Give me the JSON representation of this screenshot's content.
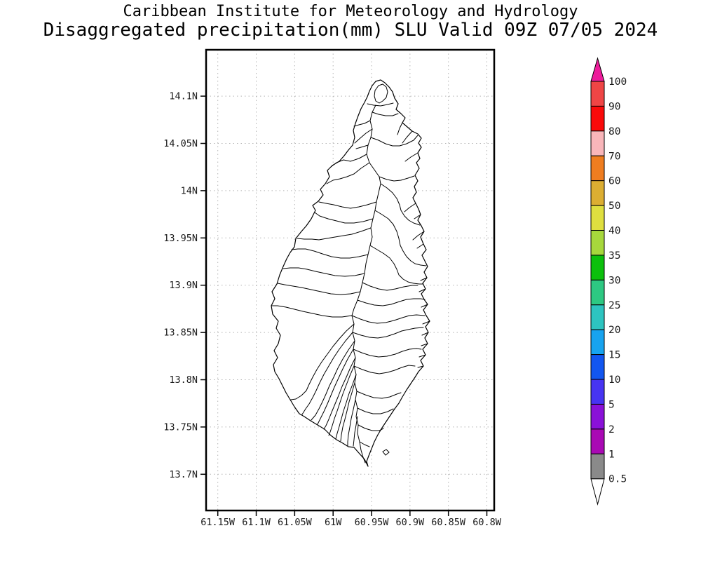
{
  "title": {
    "line1": "Caribbean Institute for Meteorology and Hydrology",
    "line2": "Disaggregated precipitation(mm) SLU Valid 09Z 07/05 2024"
  },
  "plot": {
    "x_tick_labels": [
      "61.15W",
      "61.1W",
      "61.05W",
      "61W",
      "60.95W",
      "60.9W",
      "60.85W",
      "60.8W"
    ],
    "y_tick_labels": [
      "14.1N",
      "14.05N",
      "14N",
      "13.95N",
      "13.9N",
      "13.85N",
      "13.8N",
      "13.75N",
      "13.7N"
    ],
    "border_color": "#000000",
    "grid_color": "#b4b4b4",
    "label_color": "#1a1a1a"
  },
  "colorbar": {
    "labels": [
      "100",
      "90",
      "80",
      "70",
      "60",
      "50",
      "40",
      "35",
      "30",
      "25",
      "20",
      "15",
      "10",
      "5",
      "2",
      "1",
      "0.5"
    ],
    "segment_colors": [
      "#ef4545",
      "#fa0a0a",
      "#f9b6ba",
      "#ef7d20",
      "#dcae32",
      "#dfdf3f",
      "#a7d83c",
      "#0cc00c",
      "#2dc882",
      "#2dc4c0",
      "#17a3ef",
      "#1256f0",
      "#4734f2",
      "#8a11d8",
      "#a909b4",
      "#8a8a8a"
    ],
    "top_arrow_color": "#ed1c9b",
    "bottom_arrow_color": "#ffffff",
    "outline_color": "#000000"
  },
  "map": {
    "region": "Saint Lucia (SLU)",
    "coastline": [
      525,
      665,
      520,
      655,
      512,
      646,
      505,
      638,
      497,
      637,
      489,
      632,
      480,
      627,
      472,
      621,
      463,
      612,
      453,
      606,
      443,
      600,
      434,
      594,
      427,
      590,
      420,
      580,
      414,
      570,
      408,
      560,
      403,
      550,
      398,
      540,
      392,
      530,
      390,
      520,
      396,
      510,
      391,
      500,
      397,
      490,
      400,
      478,
      394,
      468,
      397,
      458,
      389,
      448,
      387,
      436,
      392,
      426,
      388,
      416,
      395,
      405,
      399,
      392,
      404,
      380,
      409,
      369,
      414,
      360,
      420,
      352,
      422,
      340,
      430,
      330,
      437,
      322,
      444,
      312,
      450,
      300,
      446,
      293,
      454,
      287,
      461,
      278,
      457,
      270,
      464,
      262,
      470,
      252,
      467,
      243,
      474,
      236,
      484,
      230,
      491,
      222,
      497,
      214,
      503,
      207,
      506,
      196,
      504,
      186,
      507,
      176,
      511,
      165,
      515,
      155,
      520,
      146,
      524,
      138,
      527,
      130,
      531,
      122,
      536,
      116,
      543,
      114,
      549,
      118,
      555,
      124,
      560,
      131,
      563,
      140,
      568,
      148,
      565,
      156,
      572,
      162,
      578,
      168,
      574,
      175,
      581,
      181,
      588,
      187,
      596,
      191,
      601,
      197,
      597,
      204,
      601,
      210,
      596,
      218,
      599,
      226,
      594,
      232,
      598,
      240,
      592,
      250,
      596,
      258,
      591,
      266,
      594,
      274,
      589,
      282,
      593,
      290,
      597,
      298,
      600,
      306,
      596,
      314,
      601,
      322,
      605,
      330,
      600,
      338,
      604,
      348,
      608,
      356,
      602,
      364,
      606,
      372,
      610,
      380,
      605,
      388,
      609,
      396,
      603,
      404,
      607,
      412,
      601,
      419,
      605,
      427,
      610,
      434,
      604,
      442,
      608,
      450,
      613,
      458,
      607,
      466,
      611,
      474,
      606,
      482,
      610,
      490,
      603,
      498,
      607,
      506,
      600,
      514,
      604,
      522,
      597,
      530,
      592,
      538,
      586,
      547,
      580,
      556,
      574,
      566,
      569,
      575,
      563,
      583,
      557,
      592,
      551,
      601,
      545,
      610,
      539,
      620,
      534,
      630,
      530,
      640,
      526,
      650,
      523,
      658
    ],
    "islet": [
      546,
      644,
      551,
      641,
      555,
      645,
      550,
      649
    ],
    "watershed_lines": [
      [
        536,
        150,
        531,
        160,
        528,
        172,
        531,
        184,
        529,
        196,
        525,
        207,
        523,
        220,
        527,
        232,
        534,
        242,
        541,
        252,
        543,
        262,
        540,
        275,
        537,
        288,
        535,
        300,
        532,
        312,
        529,
        325,
        531,
        338,
        528,
        350,
        525,
        363,
        522,
        376,
        520,
        390,
        517,
        403,
        514,
        416,
        510,
        428,
        505,
        440,
        502,
        450
      ],
      [
        502,
        450,
        505,
        462,
        503,
        474,
        506,
        486,
        504,
        498,
        507,
        510,
        505,
        522,
        508,
        534,
        506,
        546,
        509,
        558,
        507,
        570,
        510,
        582,
        508,
        594,
        511,
        606,
        510,
        618,
        513,
        630,
        515,
        642,
        518,
        652,
        521,
        660
      ],
      [
        524,
        148,
        533,
        150,
        543,
        151,
        553,
        149,
        561,
        147
      ],
      [
        540,
        122,
        546,
        120,
        551,
        124,
        553,
        131,
        551,
        139,
        546,
        144,
        541,
        147,
        536,
        144,
        534,
        137,
        535,
        129,
        540,
        122
      ],
      [
        531,
        160,
        540,
        163,
        550,
        165,
        560,
        165,
        568,
        162
      ],
      [
        528,
        172,
        520,
        176,
        512,
        178,
        505,
        180
      ],
      [
        531,
        184,
        522,
        190,
        515,
        196,
        506,
        204
      ],
      [
        529,
        196,
        540,
        200,
        550,
        205,
        560,
        208,
        570,
        208,
        580,
        205,
        590,
        200,
        596,
        193
      ],
      [
        525,
        207,
        515,
        210,
        508,
        212
      ],
      [
        523,
        220,
        512,
        226,
        500,
        230,
        490,
        228,
        480,
        232,
        472,
        238
      ],
      [
        527,
        232,
        515,
        240,
        505,
        248,
        495,
        252,
        485,
        255,
        475,
        257,
        466,
        262
      ],
      [
        541,
        252,
        552,
        256,
        562,
        258,
        572,
        257,
        582,
        254,
        591,
        251
      ],
      [
        543,
        262,
        552,
        268,
        560,
        275,
        566,
        283,
        570,
        292,
        572,
        300,
        577,
        308,
        583,
        314,
        590,
        318,
        599,
        321
      ],
      [
        537,
        288,
        524,
        292,
        512,
        295,
        500,
        297,
        488,
        295,
        476,
        292,
        465,
        290,
        455,
        288
      ],
      [
        532,
        312,
        518,
        316,
        505,
        318,
        492,
        318,
        480,
        315,
        468,
        312,
        456,
        308,
        449,
        303
      ],
      [
        535,
        300,
        545,
        306,
        554,
        312,
        561,
        320,
        566,
        330,
        569,
        340,
        571,
        350,
        575,
        358,
        580,
        366,
        586,
        372,
        592,
        376,
        600,
        378,
        608,
        379
      ],
      [
        529,
        325,
        515,
        330,
        502,
        334,
        490,
        336,
        478,
        338,
        466,
        340,
        455,
        342,
        445,
        341,
        434,
        341,
        424,
        340
      ],
      [
        525,
        363,
        512,
        366,
        499,
        368,
        486,
        368,
        473,
        366,
        460,
        362,
        448,
        358,
        436,
        355,
        425,
        355,
        416,
        356
      ],
      [
        528,
        350,
        538,
        356,
        548,
        362,
        556,
        368,
        562,
        376,
        566,
        384,
        569,
        392,
        575,
        398,
        582,
        402,
        590,
        404,
        598,
        405,
        604,
        405
      ],
      [
        520,
        390,
        506,
        393,
        492,
        394,
        478,
        393,
        464,
        390,
        450,
        387,
        438,
        384,
        426,
        382,
        414,
        382,
        404,
        383
      ],
      [
        517,
        403,
        528,
        408,
        540,
        412,
        552,
        414,
        564,
        412,
        576,
        409,
        588,
        407,
        596,
        407
      ],
      [
        514,
        416,
        500,
        419,
        486,
        420,
        472,
        419,
        458,
        416,
        444,
        413,
        430,
        410,
        418,
        408,
        406,
        406,
        396,
        404
      ],
      [
        510,
        428,
        522,
        432,
        534,
        435,
        546,
        436,
        558,
        434,
        570,
        430,
        580,
        427,
        590,
        426,
        600,
        426,
        606,
        427
      ],
      [
        502,
        450,
        488,
        452,
        474,
        452,
        460,
        450,
        446,
        447,
        432,
        444,
        420,
        441,
        408,
        438,
        396,
        436,
        388,
        436
      ],
      [
        502,
        450,
        514,
        455,
        526,
        459,
        538,
        461,
        550,
        460,
        562,
        457,
        574,
        453,
        584,
        450,
        594,
        449,
        606,
        450
      ],
      [
        503,
        474,
        515,
        478,
        527,
        481,
        539,
        482,
        551,
        480,
        563,
        476,
        573,
        472,
        582,
        470,
        592,
        468,
        604,
        467
      ],
      [
        504,
        498,
        516,
        503,
        528,
        507,
        540,
        509,
        552,
        508,
        564,
        505,
        574,
        501,
        584,
        498,
        594,
        497,
        601,
        498
      ],
      [
        505,
        522,
        517,
        527,
        529,
        531,
        541,
        533,
        553,
        531,
        563,
        528,
        573,
        524,
        583,
        521,
        592,
        522
      ],
      [
        509,
        558,
        521,
        563,
        533,
        567,
        545,
        568,
        556,
        566,
        566,
        562,
        572,
        560
      ],
      [
        510,
        582,
        521,
        587,
        532,
        590,
        543,
        590,
        553,
        587,
        561,
        583
      ],
      [
        511,
        606,
        521,
        611,
        531,
        614,
        541,
        614,
        547,
        611
      ],
      [
        513,
        630,
        520,
        634,
        527,
        637
      ],
      [
        505,
        462,
        494,
        472,
        484,
        483,
        475,
        494,
        467,
        505,
        459,
        516,
        452,
        527,
        446,
        538,
        441,
        548,
        437,
        557,
        430,
        564,
        422,
        569,
        415,
        570
      ],
      [
        503,
        474,
        493,
        486,
        484,
        498,
        476,
        510,
        469,
        522,
        462,
        534,
        456,
        546,
        451,
        557,
        446,
        567,
        441,
        576,
        436,
        583,
        431,
        591
      ],
      [
        506,
        486,
        497,
        499,
        489,
        512,
        482,
        525,
        476,
        538,
        470,
        550,
        465,
        562,
        460,
        573,
        455,
        583,
        450,
        592,
        444,
        599
      ],
      [
        504,
        498,
        496,
        512,
        489,
        526,
        483,
        539,
        477,
        552,
        472,
        564,
        467,
        576,
        462,
        587,
        457,
        597,
        453,
        605
      ],
      [
        507,
        510,
        500,
        524,
        494,
        538,
        488,
        551,
        483,
        564,
        478,
        576,
        473,
        588,
        469,
        598,
        465,
        607,
        462,
        612
      ],
      [
        505,
        522,
        499,
        536,
        494,
        549,
        489,
        562,
        485,
        574,
        481,
        586,
        477,
        597,
        474,
        607,
        471,
        616,
        469,
        621
      ],
      [
        508,
        534,
        503,
        548,
        498,
        561,
        494,
        574,
        490,
        586,
        487,
        597,
        484,
        608,
        481,
        618,
        479,
        626
      ],
      [
        506,
        546,
        502,
        560,
        498,
        573,
        495,
        586,
        492,
        598,
        489,
        609,
        487,
        620,
        486,
        629
      ],
      [
        507,
        570,
        504,
        584,
        501,
        597,
        499,
        609,
        497,
        620,
        496,
        630,
        496,
        636
      ],
      [
        510,
        594,
        508,
        606,
        506,
        617,
        505,
        627,
        504,
        636
      ],
      [
        574,
        175,
        570,
        183,
        567,
        192
      ],
      [
        588,
        187,
        580,
        196,
        574,
        204
      ],
      [
        596,
        218,
        586,
        224,
        578,
        230
      ],
      [
        593,
        290,
        584,
        296,
        577,
        302
      ],
      [
        600,
        306,
        591,
        312
      ],
      [
        605,
        330,
        596,
        336,
        589,
        342
      ],
      [
        604,
        348,
        595,
        354
      ],
      [
        609,
        396,
        600,
        400
      ],
      [
        607,
        412,
        598,
        416
      ],
      [
        610,
        434,
        601,
        438
      ],
      [
        613,
        458,
        603,
        462
      ],
      [
        611,
        474,
        602,
        478
      ],
      [
        610,
        490,
        601,
        493
      ],
      [
        607,
        506,
        598,
        509
      ],
      [
        604,
        522,
        596,
        524
      ]
    ]
  }
}
